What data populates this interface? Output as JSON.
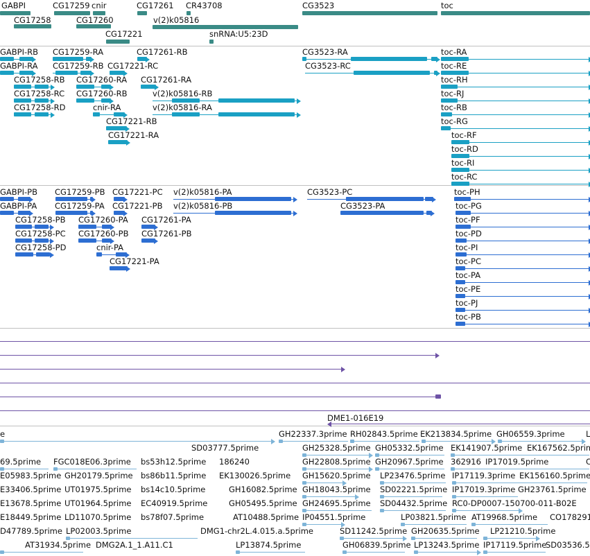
{
  "colors": {
    "gene": "#3a8b86",
    "transcript": "#1aa0c4",
    "cds": "#2d6ed2",
    "contig": "#6e53a6",
    "est": "#7eb4d8",
    "separator": "#c0c0c0"
  },
  "tracks": {
    "genes": [
      "GABPI",
      "CG17259",
      "cnir",
      "CG17261",
      "CR43708",
      "CG3523",
      "toc",
      "CG17258",
      "CG17260",
      "v(2)k05816",
      "CG17221",
      "snRNA:U5:23D"
    ],
    "transcripts": [
      "GABPI-RB",
      "CG17259-RA",
      "CG17261-RB",
      "CG3523-RA",
      "toc-RA",
      "GABPI-RA",
      "CG17259-RB",
      "CG17221-RC",
      "CG3523-RC",
      "toc-RE",
      "CG17258-RB",
      "CG17260-RA",
      "CG17261-RA",
      "toc-RH",
      "CG17258-RC",
      "CG17260-RB",
      "v(2)k05816-RB",
      "toc-RJ",
      "CG17258-RD",
      "cnir-RA",
      "v(2)k05816-RA",
      "toc-RB",
      "CG17221-RB",
      "toc-RG",
      "CG17221-RA",
      "toc-RF",
      "toc-RD",
      "toc-RI",
      "toc-RC"
    ],
    "proteins": [
      "GABPI-PB",
      "CG17259-PB",
      "CG17221-PC",
      "v(2)k05816-PA",
      "CG3523-PC",
      "toc-PH",
      "GABPI-PA",
      "CG17259-PA",
      "CG17221-PB",
      "v(2)k05816-PB",
      "CG3523-PA",
      "toc-PG",
      "CG17258-PB",
      "CG17260-PA",
      "CG17261-PA",
      "toc-PF",
      "CG17258-PC",
      "CG17260-PB",
      "CG17261-PB",
      "toc-PD",
      "CG17258-PD",
      "cnir-PA",
      "toc-PI",
      "toc-PC",
      "CG17221-PA",
      "toc-PA",
      "toc-PE",
      "toc-PJ",
      "toc-PB"
    ],
    "contigs": [
      "DME1-016E19"
    ],
    "ests": [
      "e",
      "GH22337.3prime",
      "RH02843.5prime",
      "EK213834.5prime",
      "GH06559.3prime",
      "L",
      "SD03777.5prime",
      "GH25328.5prime",
      "GH05332.5prime",
      "EK141907.5prime",
      "EK167562.5prime",
      "69.5prime",
      "FGC018E06.3prime",
      "bs53h12.5prime",
      "186240",
      "GH22808.5prime",
      "GH20967.5prime",
      "362916",
      "IP17019.5prime",
      "C",
      "E05983.5prime",
      "GH20179.5prime",
      "bs86b11.5prime",
      "EK130026.5prime",
      "GH15620.5prime",
      "LP23476.5prime",
      "IP17119.3prime",
      "EK156160.5prime",
      "E33406.5prime",
      "UT01975.5prime",
      "bs14c10.5prime",
      "GH16082.5prime",
      "GH18043.5prime",
      "SD02221.5prime",
      "IP17019.3prime",
      "GH23761.5prime",
      "E13678.5prime",
      "UT01964.5prime",
      "EC40919.5prime",
      "GH05495.5prime",
      "GH24695.5prime",
      "SD04432.5prime",
      "RC0-DP0007-150700-011-B02E",
      "E18449.5prime",
      "LD11070.5prime",
      "bs78f07.5prime",
      "AT10488.5prime",
      "IP04551.5prime",
      "LP03821.5prime",
      "AT19968.5prime",
      "CO178291",
      "D47789.5prime",
      "LP02003.5prime",
      "DMG1-chr2L.4.015.a.5prime",
      "SD11242.5prime",
      "GH20635.5prime",
      "LP21210.5prime",
      "AT31934.5prime",
      "DMG2A.1_1.A11.C1",
      "LP13874.5prime",
      "GH06839.5prime",
      "LP13243.5prime",
      "IP17119.5prime",
      "SD03536.5"
    ]
  }
}
